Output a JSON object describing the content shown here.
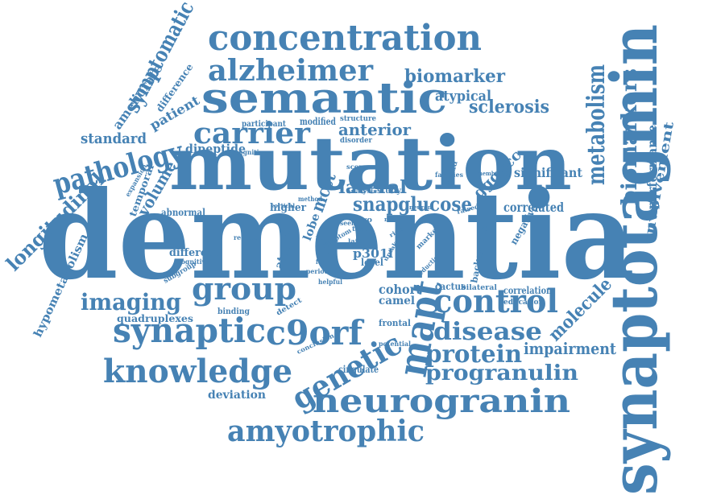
{
  "style": {
    "text_color": "#4682b4",
    "background": "#ffffff"
  },
  "words": [
    {
      "id": "dementia",
      "text": "dementia"
    },
    {
      "id": "mutation",
      "text": "mutation"
    },
    {
      "id": "synaptotagmin",
      "text": "synaptotagmin"
    },
    {
      "id": "concentration",
      "text": "concentration"
    },
    {
      "id": "semantic",
      "text": "semantic"
    },
    {
      "id": "alzheimer",
      "text": "alzheimer"
    },
    {
      "id": "group",
      "text": "group"
    },
    {
      "id": "synaptic",
      "text": "synaptic"
    },
    {
      "id": "c9orf",
      "text": "c9orf"
    },
    {
      "id": "knowledge",
      "text": "knowledge"
    },
    {
      "id": "neurogranin",
      "text": "neurogranin"
    },
    {
      "id": "amyotrophic",
      "text": "amyotrophic"
    },
    {
      "id": "genetic",
      "text": "genetic"
    },
    {
      "id": "mapt",
      "text": "mapt"
    },
    {
      "id": "control",
      "text": "control"
    },
    {
      "id": "disease",
      "text": "disease"
    },
    {
      "id": "protein",
      "text": "protein"
    },
    {
      "id": "progranulin",
      "text": "progranulin"
    },
    {
      "id": "carrier",
      "text": "carrier"
    },
    {
      "id": "pathology",
      "text": "pathology"
    },
    {
      "id": "imaging",
      "text": "imaging"
    },
    {
      "id": "metabolism",
      "text": "metabolism"
    },
    {
      "id": "biomarkers",
      "text": "biomarkers"
    },
    {
      "id": "longitudinal",
      "text": "longitudinal"
    },
    {
      "id": "snapglucose",
      "text": "snapglucose"
    },
    {
      "id": "symptomatic",
      "text": "symptomatic"
    },
    {
      "id": "sclerosis",
      "text": "sclerosis"
    },
    {
      "id": "biomarker",
      "text": "biomarker"
    },
    {
      "id": "impairment",
      "text": "impairment"
    },
    {
      "id": "molecule",
      "text": "molecule"
    },
    {
      "id": "performance",
      "text": "performance"
    },
    {
      "id": "involvement",
      "text": "involvement"
    },
    {
      "id": "anterior",
      "text": "anterior"
    },
    {
      "id": "atypical",
      "text": "atypical"
    },
    {
      "id": "lateral",
      "text": "lateral"
    },
    {
      "id": "standard",
      "text": "standard"
    },
    {
      "id": "patient",
      "text": "patient"
    },
    {
      "id": "ameliorate",
      "text": "ameliorate"
    },
    {
      "id": "difference",
      "text": "difference"
    },
    {
      "id": "volume",
      "text": "volume"
    },
    {
      "id": "dipeptide",
      "text": "dipeptide"
    },
    {
      "id": "mcct",
      "text": "mcct"
    },
    {
      "id": "ggggcc",
      "text": "ggggcc"
    },
    {
      "id": "significant",
      "text": "significant"
    },
    {
      "id": "correlated",
      "text": "correlated"
    },
    {
      "id": "cohort",
      "text": "cohort"
    },
    {
      "id": "camel",
      "text": "camel"
    },
    {
      "id": "p301l",
      "text": "p301l"
    },
    {
      "id": "level",
      "text": "level"
    },
    {
      "id": "atrophy",
      "text": "atrophy"
    },
    {
      "id": "quadruplexes",
      "text": "quadruplexes"
    },
    {
      "id": "hypometabolism",
      "text": "hypometabolism"
    },
    {
      "id": "deviation",
      "text": "deviation"
    },
    {
      "id": "cingulate",
      "text": "cingulate"
    },
    {
      "id": "frontal",
      "text": "frontal"
    },
    {
      "id": "cactus",
      "text": "cactus"
    },
    {
      "id": "higher",
      "text": "higher"
    },
    {
      "id": "different",
      "text": "different"
    },
    {
      "id": "abnormal",
      "text": "abnormal"
    },
    {
      "id": "temporal",
      "text": "temporal"
    },
    {
      "id": "negative",
      "text": "negative"
    },
    {
      "id": "background",
      "text": "background"
    },
    {
      "id": "correlation",
      "text": "correlation"
    },
    {
      "id": "education",
      "text": "education"
    },
    {
      "id": "bilateral",
      "text": "bilateral"
    },
    {
      "id": "modified",
      "text": "modified"
    },
    {
      "id": "participant",
      "text": "participant"
    },
    {
      "id": "structure",
      "text": "structure"
    },
    {
      "id": "disorder",
      "text": "disorder"
    },
    {
      "id": "cognition",
      "text": "cognition"
    },
    {
      "id": "lobe",
      "text": "lobe"
    },
    {
      "id": "study",
      "text": "study"
    },
    {
      "id": "vivo",
      "text": "vivo"
    },
    {
      "id": "method",
      "text": "method"
    },
    {
      "id": "analysis",
      "text": "analysis"
    },
    {
      "id": "cortical",
      "text": "cortical"
    },
    {
      "id": "score",
      "text": "score"
    },
    {
      "id": "families",
      "text": "families"
    },
    {
      "id": "member",
      "text": "member"
    },
    {
      "id": "trend",
      "text": "trend"
    },
    {
      "id": "expansion",
      "text": "expansion"
    },
    {
      "id": "subgroup",
      "text": "subgroup"
    },
    {
      "id": "binding",
      "text": "binding"
    },
    {
      "id": "detect",
      "text": "detect"
    },
    {
      "id": "conclusion",
      "text": "conclusion"
    },
    {
      "id": "potential",
      "text": "potential"
    },
    {
      "id": "reduction",
      "text": "reduction"
    },
    {
      "id": "marker",
      "text": "marker"
    },
    {
      "id": "raised",
      "text": "raised"
    },
    {
      "id": "neuron",
      "text": "neuron"
    },
    {
      "id": "result",
      "text": "result"
    },
    {
      "id": "test",
      "text": "test"
    },
    {
      "id": "year",
      "text": "year"
    },
    {
      "id": "reduce",
      "text": "reduce"
    },
    {
      "id": "cognitive",
      "text": "cognitive"
    },
    {
      "id": "symptom",
      "text": "symptom"
    },
    {
      "id": "form",
      "text": "form"
    },
    {
      "id": "period",
      "text": "period"
    },
    {
      "id": "helpful",
      "text": "helpful"
    },
    {
      "id": "vitro",
      "text": "vitro"
    },
    {
      "id": "seem",
      "text": "seem"
    },
    {
      "id": "late",
      "text": "late"
    },
    {
      "id": "uptake",
      "text": "uptake"
    },
    {
      "id": "risk",
      "text": "risk"
    }
  ]
}
